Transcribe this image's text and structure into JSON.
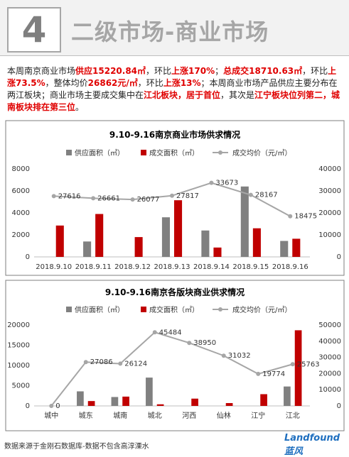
{
  "header": {
    "number": "4",
    "title": "二级市场-商业市场"
  },
  "summary": [
    {
      "text": "本周南京商业市场",
      "emphasis": false
    },
    {
      "text": "供应15220.84㎡",
      "emphasis": true
    },
    {
      "text": "，环比",
      "emphasis": false
    },
    {
      "text": "上涨170%",
      "emphasis": true
    },
    {
      "text": "；",
      "emphasis": false
    },
    {
      "text": "总成交18710.63㎡",
      "emphasis": true
    },
    {
      "text": "，环比",
      "emphasis": false
    },
    {
      "text": "上涨73.5%",
      "emphasis": true
    },
    {
      "text": "，整体均价",
      "emphasis": false
    },
    {
      "text": "26862元/㎡",
      "emphasis": true
    },
    {
      "text": "，环比",
      "emphasis": false
    },
    {
      "text": "上涨13%",
      "emphasis": true
    },
    {
      "text": "；本周商业市场产品供应主要分布在两江板块；商业市场主要成交集中在",
      "emphasis": false
    },
    {
      "text": "江北板块，居于首位",
      "emphasis": true
    },
    {
      "text": "，其次是",
      "emphasis": false
    },
    {
      "text": "江宁板块位列第二，城南板块排在第三位",
      "emphasis": true
    },
    {
      "text": "。",
      "emphasis": false
    }
  ],
  "chart_data": [
    {
      "type": "bar",
      "title": "9.10-9.16南京商业市场供求情况",
      "categories": [
        "2018.9.10",
        "2018.9.11",
        "2018.9.12",
        "2018.9.13",
        "2018.9.14",
        "2018.9.15",
        "2018.9.16"
      ],
      "series": [
        {
          "name": "供应面积（㎡）",
          "color": "#808080",
          "values": [
            0,
            1400,
            0,
            3600,
            2400,
            6400,
            1450
          ]
        },
        {
          "name": "成交面积（㎡）",
          "color": "#c00000",
          "values": [
            2850,
            3900,
            1800,
            5150,
            850,
            2600,
            1650
          ]
        },
        {
          "name": "成交均价（元/㎡）",
          "color": "#a6a6a6",
          "type": "line",
          "axis": "y2",
          "values": [
            27616,
            26661,
            26077,
            27817,
            33673,
            28167,
            18475
          ]
        }
      ],
      "ylim": [
        0,
        8000
      ],
      "yticks": [
        0,
        2000,
        4000,
        6000,
        8000
      ],
      "y2lim": [
        0,
        40000
      ],
      "y2ticks": [
        0,
        10000,
        20000,
        30000,
        40000
      ]
    },
    {
      "type": "bar",
      "title": "9.10-9.16南京各版块商业供求情况",
      "categories": [
        "城中",
        "城东",
        "城南",
        "城北",
        "河西",
        "仙林",
        "江宁",
        "江北"
      ],
      "series": [
        {
          "name": "供应面积（㎡）",
          "color": "#808080",
          "values": [
            0,
            3600,
            2200,
            7000,
            0,
            0,
            0,
            4800
          ]
        },
        {
          "name": "成交面积（㎡）",
          "color": "#c00000",
          "values": [
            0,
            1200,
            2300,
            400,
            1800,
            700,
            2900,
            18700
          ]
        },
        {
          "name": "成交均价（元/㎡）",
          "color": "#a6a6a6",
          "type": "line",
          "axis": "y2",
          "values": [
            0,
            27086,
            26124,
            45484,
            38950,
            31032,
            19774,
            25763
          ]
        }
      ],
      "ylim": [
        0,
        20000
      ],
      "yticks": [
        0,
        5000,
        10000,
        15000,
        20000
      ],
      "y2lim": [
        0,
        50000
      ],
      "y2ticks": [
        0,
        10000,
        20000,
        30000,
        40000,
        50000
      ]
    }
  ],
  "footer": {
    "source": "数据来源于金刚石数据库-数据不包含高淳溧水",
    "logo": "Landfound蓝风"
  }
}
